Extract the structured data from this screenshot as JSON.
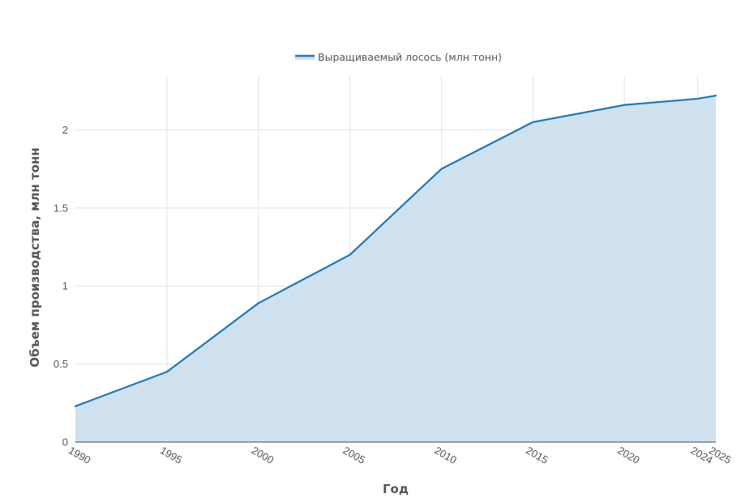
{
  "chart_data": {
    "type": "area",
    "x": [
      1990,
      1995,
      2000,
      2005,
      2010,
      2015,
      2020,
      2024,
      2025
    ],
    "x_tick_labels": [
      "1990",
      "1995",
      "2000",
      "2005",
      "2010",
      "2015",
      "2020",
      "2024",
      "2025"
    ],
    "series": [
      {
        "name": "Выращиваемый лосось (млн тонн)",
        "values": [
          0.23,
          0.45,
          0.89,
          1.2,
          1.75,
          2.05,
          2.16,
          2.2,
          2.22
        ],
        "color": "#1f77b4",
        "fill_color": "#cfe1ef"
      }
    ],
    "xlabel": "Год",
    "ylabel": "Объем производства, млн тонн",
    "xlim": [
      1990,
      2025
    ],
    "ylim": [
      0,
      2.35
    ],
    "y_ticks": [
      0,
      0.5,
      1,
      1.5,
      2
    ],
    "y_tick_labels": [
      "0",
      "0.5",
      "1",
      "1.5",
      "2"
    ],
    "grid": true,
    "legend_position": "top-center"
  }
}
